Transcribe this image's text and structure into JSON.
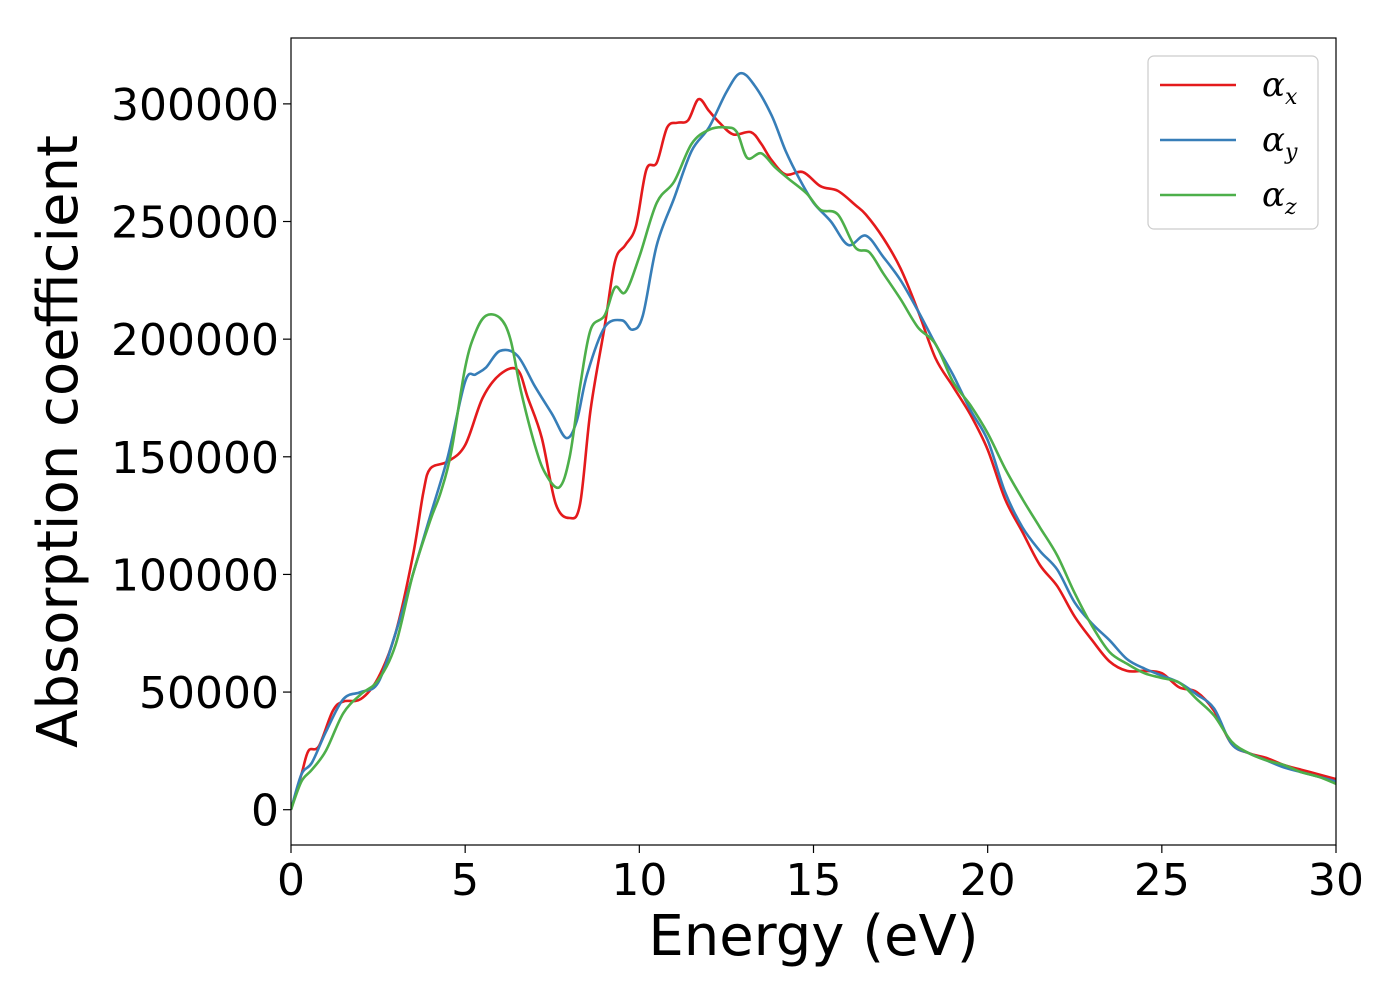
{
  "chart_data": {
    "type": "line",
    "title": "",
    "xlabel": "Energy (eV)",
    "ylabel": "Absorption coefficient",
    "xlim": [
      0,
      30
    ],
    "ylim": [
      -15000,
      328000
    ],
    "xticks": [
      0,
      5,
      10,
      15,
      20,
      25,
      30
    ],
    "yticks": [
      0,
      50000,
      100000,
      150000,
      200000,
      250000,
      300000
    ],
    "grid": false,
    "legend_position": "top-right",
    "series": [
      {
        "name": "α",
        "subscript": "x",
        "color": "#e41a1c",
        "points": [
          [
            0,
            0
          ],
          [
            0.3,
            15000
          ],
          [
            0.5,
            25000
          ],
          [
            0.8,
            27000
          ],
          [
            1.2,
            42000
          ],
          [
            1.5,
            46000
          ],
          [
            2,
            47000
          ],
          [
            2.5,
            56000
          ],
          [
            3,
            75000
          ],
          [
            3.5,
            108000
          ],
          [
            3.8,
            135000
          ],
          [
            4,
            145000
          ],
          [
            4.5,
            148000
          ],
          [
            5,
            155000
          ],
          [
            5.5,
            175000
          ],
          [
            6,
            185000
          ],
          [
            6.5,
            187000
          ],
          [
            6.8,
            175000
          ],
          [
            7.2,
            158000
          ],
          [
            7.6,
            130000
          ],
          [
            8,
            124000
          ],
          [
            8.3,
            130000
          ],
          [
            8.6,
            170000
          ],
          [
            9,
            205000
          ],
          [
            9.3,
            233000
          ],
          [
            9.6,
            240000
          ],
          [
            9.9,
            248000
          ],
          [
            10.2,
            272000
          ],
          [
            10.5,
            275000
          ],
          [
            10.8,
            290000
          ],
          [
            11.1,
            292000
          ],
          [
            11.4,
            293000
          ],
          [
            11.7,
            302000
          ],
          [
            12,
            297000
          ],
          [
            12.3,
            292000
          ],
          [
            12.7,
            287000
          ],
          [
            13.2,
            288000
          ],
          [
            13.5,
            283000
          ],
          [
            13.8,
            276000
          ],
          [
            14.2,
            270000
          ],
          [
            14.7,
            271000
          ],
          [
            15.2,
            265000
          ],
          [
            15.7,
            263000
          ],
          [
            16.2,
            257000
          ],
          [
            16.5,
            253000
          ],
          [
            17,
            243000
          ],
          [
            17.5,
            230000
          ],
          [
            18,
            212000
          ],
          [
            18.5,
            192000
          ],
          [
            19,
            180000
          ],
          [
            19.5,
            168000
          ],
          [
            20,
            153000
          ],
          [
            20.5,
            132000
          ],
          [
            21,
            118000
          ],
          [
            21.5,
            104000
          ],
          [
            22,
            95000
          ],
          [
            22.5,
            82000
          ],
          [
            23,
            72000
          ],
          [
            23.5,
            63000
          ],
          [
            24,
            59000
          ],
          [
            24.5,
            59000
          ],
          [
            25,
            58000
          ],
          [
            25.5,
            52000
          ],
          [
            26,
            50000
          ],
          [
            26.5,
            42000
          ],
          [
            27,
            28000
          ],
          [
            27.5,
            24000
          ],
          [
            28,
            22000
          ],
          [
            28.5,
            19000
          ],
          [
            29,
            17000
          ],
          [
            29.5,
            15000
          ],
          [
            30,
            13000
          ]
        ]
      },
      {
        "name": "α",
        "subscript": "y",
        "color": "#377eb8",
        "points": [
          [
            0,
            0
          ],
          [
            0.3,
            15000
          ],
          [
            0.6,
            20000
          ],
          [
            1,
            33000
          ],
          [
            1.5,
            47000
          ],
          [
            2,
            50000
          ],
          [
            2.5,
            54000
          ],
          [
            3,
            75000
          ],
          [
            3.5,
            100000
          ],
          [
            4,
            125000
          ],
          [
            4.5,
            150000
          ],
          [
            5,
            182000
          ],
          [
            5.3,
            185000
          ],
          [
            5.6,
            188000
          ],
          [
            6,
            195000
          ],
          [
            6.5,
            193000
          ],
          [
            7,
            180000
          ],
          [
            7.5,
            168000
          ],
          [
            7.9,
            158000
          ],
          [
            8.2,
            165000
          ],
          [
            8.5,
            185000
          ],
          [
            9,
            205000
          ],
          [
            9.5,
            208000
          ],
          [
            9.8,
            204000
          ],
          [
            10.1,
            210000
          ],
          [
            10.5,
            240000
          ],
          [
            11,
            260000
          ],
          [
            11.5,
            280000
          ],
          [
            12,
            290000
          ],
          [
            12.5,
            305000
          ],
          [
            12.9,
            313000
          ],
          [
            13.3,
            308000
          ],
          [
            13.8,
            295000
          ],
          [
            14.2,
            280000
          ],
          [
            14.6,
            268000
          ],
          [
            15,
            258000
          ],
          [
            15.5,
            250000
          ],
          [
            16,
            240000
          ],
          [
            16.5,
            244000
          ],
          [
            17,
            235000
          ],
          [
            17.5,
            225000
          ],
          [
            18,
            212000
          ],
          [
            18.5,
            198000
          ],
          [
            19,
            185000
          ],
          [
            19.5,
            170000
          ],
          [
            20,
            157000
          ],
          [
            20.5,
            135000
          ],
          [
            21,
            120000
          ],
          [
            21.5,
            110000
          ],
          [
            22,
            102000
          ],
          [
            22.5,
            88000
          ],
          [
            23,
            79000
          ],
          [
            23.5,
            72000
          ],
          [
            24,
            64000
          ],
          [
            24.5,
            60000
          ],
          [
            25,
            57000
          ],
          [
            25.5,
            54000
          ],
          [
            26,
            49000
          ],
          [
            26.5,
            43000
          ],
          [
            27,
            28000
          ],
          [
            27.5,
            24000
          ],
          [
            28,
            21000
          ],
          [
            28.5,
            18000
          ],
          [
            29,
            16000
          ],
          [
            29.5,
            14000
          ],
          [
            30,
            12000
          ]
        ]
      },
      {
        "name": "α",
        "subscript": "z",
        "color": "#4daf4a",
        "points": [
          [
            0,
            0
          ],
          [
            0.3,
            12000
          ],
          [
            0.6,
            17000
          ],
          [
            1,
            25000
          ],
          [
            1.5,
            41000
          ],
          [
            2,
            49000
          ],
          [
            2.5,
            55000
          ],
          [
            3,
            70000
          ],
          [
            3.5,
            100000
          ],
          [
            4,
            123000
          ],
          [
            4.3,
            135000
          ],
          [
            4.6,
            152000
          ],
          [
            5,
            188000
          ],
          [
            5.3,
            203000
          ],
          [
            5.6,
            210000
          ],
          [
            6,
            209000
          ],
          [
            6.3,
            200000
          ],
          [
            6.6,
            178000
          ],
          [
            7,
            155000
          ],
          [
            7.3,
            143000
          ],
          [
            7.7,
            137000
          ],
          [
            8,
            150000
          ],
          [
            8.3,
            180000
          ],
          [
            8.6,
            204000
          ],
          [
            9,
            210000
          ],
          [
            9.3,
            222000
          ],
          [
            9.6,
            220000
          ],
          [
            10,
            235000
          ],
          [
            10.5,
            258000
          ],
          [
            11,
            267000
          ],
          [
            11.5,
            283000
          ],
          [
            12,
            289000
          ],
          [
            12.5,
            290000
          ],
          [
            12.8,
            288000
          ],
          [
            13.1,
            277000
          ],
          [
            13.5,
            279000
          ],
          [
            13.9,
            273000
          ],
          [
            14.3,
            268000
          ],
          [
            14.8,
            262000
          ],
          [
            15.2,
            255000
          ],
          [
            15.7,
            253000
          ],
          [
            16.2,
            239000
          ],
          [
            16.6,
            237000
          ],
          [
            17,
            228000
          ],
          [
            17.5,
            217000
          ],
          [
            18,
            205000
          ],
          [
            18.5,
            198000
          ],
          [
            19,
            182000
          ],
          [
            19.5,
            172000
          ],
          [
            20,
            160000
          ],
          [
            20.5,
            145000
          ],
          [
            21,
            132000
          ],
          [
            21.5,
            120000
          ],
          [
            22,
            108000
          ],
          [
            22.5,
            92000
          ],
          [
            23,
            78000
          ],
          [
            23.5,
            67000
          ],
          [
            24,
            62000
          ],
          [
            24.5,
            58000
          ],
          [
            25,
            56000
          ],
          [
            25.5,
            54000
          ],
          [
            26,
            47000
          ],
          [
            26.5,
            40000
          ],
          [
            27,
            29000
          ],
          [
            27.5,
            24000
          ],
          [
            28,
            21000
          ],
          [
            28.5,
            19000
          ],
          [
            29,
            16000
          ],
          [
            29.5,
            14000
          ],
          [
            30,
            11000
          ]
        ]
      }
    ]
  }
}
